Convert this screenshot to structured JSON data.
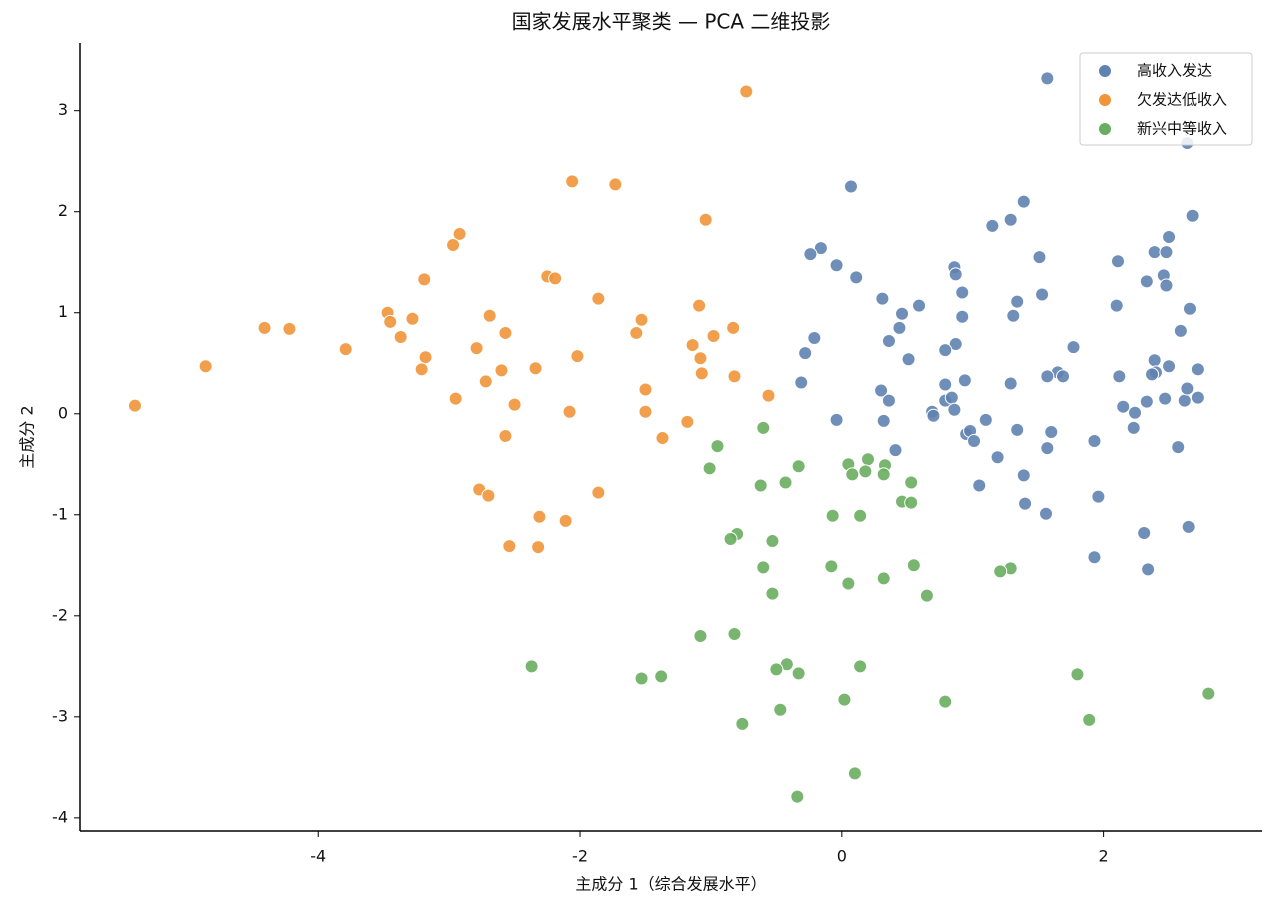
{
  "chart_data": {
    "type": "scatter",
    "title": "国家发展水平聚类 — PCA 二维投影",
    "xlabel": "主成分 1（综合发展水平）",
    "ylabel": "主成分 2",
    "xlim": [
      -5.82,
      3.21
    ],
    "ylim": [
      -4.13,
      3.67
    ],
    "xticks": [
      -4,
      -2,
      0,
      2
    ],
    "yticks": [
      -4,
      -3,
      -2,
      -1,
      0,
      1,
      2,
      3
    ],
    "grid": false,
    "legend": "upper right",
    "series": [
      {
        "name": "高收入发达",
        "color": "#5f82b0",
        "x": [
          1.57,
          2.64,
          2.68,
          0.07,
          1.39,
          1.15,
          1.29,
          -0.16,
          -0.24,
          -0.04,
          0.11,
          0.86,
          0.87,
          1.51,
          1.53,
          2.11,
          2.5,
          2.39,
          2.48,
          2.33,
          2.46,
          2.48,
          2.1,
          2.66,
          2.59,
          0.92,
          0.31,
          0.59,
          0.46,
          0.92,
          1.34,
          1.31,
          0.44,
          -0.21,
          -0.28,
          0.36,
          0.51,
          0.87,
          0.79,
          1.77,
          1.65,
          1.69,
          1.57,
          2.39,
          2.5,
          2.72,
          2.12,
          2.4,
          2.37,
          -0.31,
          0.3,
          0.36,
          0.94,
          1.29,
          0.79,
          0.79,
          0.84,
          0.86,
          0.69,
          0.7,
          -0.04,
          0.32,
          1.1,
          2.15,
          2.24,
          2.33,
          2.47,
          2.62,
          2.64,
          2.72,
          2.23,
          0.95,
          0.98,
          1.01,
          1.34,
          1.6,
          1.93,
          1.57,
          2.57,
          0.41,
          1.19,
          1.39,
          1.05,
          1.4,
          1.56,
          1.96,
          2.65,
          2.31,
          1.93,
          2.34
        ],
        "values": [
          3.32,
          2.68,
          1.96,
          2.25,
          2.1,
          1.86,
          1.92,
          1.64,
          1.58,
          1.47,
          1.35,
          1.45,
          1.38,
          1.55,
          1.18,
          1.51,
          1.75,
          1.6,
          1.6,
          1.31,
          1.37,
          1.27,
          1.07,
          1.04,
          0.82,
          1.2,
          1.14,
          1.07,
          0.99,
          0.96,
          1.11,
          0.97,
          0.85,
          0.75,
          0.6,
          0.72,
          0.54,
          0.69,
          0.63,
          0.66,
          0.41,
          0.37,
          0.37,
          0.53,
          0.47,
          0.44,
          0.37,
          0.41,
          0.39,
          0.31,
          0.23,
          0.13,
          0.33,
          0.3,
          0.29,
          0.13,
          0.16,
          0.04,
          0.02,
          -0.02,
          -0.06,
          -0.07,
          -0.06,
          0.07,
          0.01,
          0.12,
          0.15,
          0.13,
          0.25,
          0.16,
          -0.14,
          -0.2,
          -0.17,
          -0.27,
          -0.16,
          -0.18,
          -0.27,
          -0.34,
          -0.33,
          -0.36,
          -0.43,
          -0.61,
          -0.71,
          -0.89,
          -0.99,
          -0.82,
          -1.12,
          -1.18,
          -1.42,
          -1.54
        ]
      },
      {
        "name": "欠发达低收入",
        "color": "#f0953a",
        "x": [
          -0.73,
          -2.06,
          -1.73,
          -1.04,
          -2.92,
          -2.97,
          -2.25,
          -2.19,
          -3.19,
          -1.86,
          -1.09,
          -3.47,
          -3.28,
          -2.69,
          -3.45,
          -1.53,
          -4.41,
          -4.22,
          -3.37,
          -2.57,
          -0.98,
          -0.83,
          -1.57,
          -3.79,
          -2.79,
          -1.14,
          -3.18,
          -2.02,
          -1.08,
          -4.86,
          -3.21,
          -2.6,
          -2.34,
          -1.07,
          -0.82,
          -2.72,
          -1.5,
          -0.56,
          -2.95,
          -2.5,
          -5.4,
          -2.08,
          -1.5,
          -1.18,
          -1.37,
          -2.57,
          -2.77,
          -2.7,
          -1.86,
          -2.31,
          -2.11,
          -2.54,
          -2.32
        ],
        "values": [
          3.19,
          2.3,
          2.27,
          1.92,
          1.78,
          1.67,
          1.36,
          1.34,
          1.33,
          1.14,
          1.07,
          1.0,
          0.94,
          0.97,
          0.91,
          0.93,
          0.85,
          0.84,
          0.76,
          0.8,
          0.77,
          0.85,
          0.8,
          0.64,
          0.65,
          0.68,
          0.56,
          0.57,
          0.55,
          0.47,
          0.44,
          0.43,
          0.45,
          0.4,
          0.37,
          0.32,
          0.24,
          0.18,
          0.15,
          0.09,
          0.08,
          0.02,
          0.02,
          -0.08,
          -0.24,
          -0.22,
          -0.75,
          -0.81,
          -0.78,
          -1.02,
          -1.06,
          -1.31,
          -1.32
        ]
      },
      {
        "name": "新兴中等收入",
        "color": "#69ad5f",
        "x": [
          -0.6,
          -0.95,
          0.2,
          0.05,
          -0.33,
          0.33,
          -1.01,
          0.18,
          0.08,
          0.32,
          0.53,
          -0.43,
          -0.62,
          0.46,
          0.53,
          -0.07,
          0.14,
          -0.8,
          -0.85,
          -0.53,
          -0.6,
          -0.08,
          0.55,
          1.29,
          1.21,
          0.05,
          0.32,
          -0.53,
          0.65,
          -1.08,
          -0.82,
          -2.37,
          -0.42,
          -0.5,
          0.14,
          -0.33,
          -1.53,
          -1.38,
          1.8,
          2.8,
          0.02,
          0.79,
          -0.47,
          1.89,
          -0.76,
          0.1,
          -0.34
        ],
        "values": [
          -0.14,
          -0.32,
          -0.45,
          -0.5,
          -0.52,
          -0.51,
          -0.54,
          -0.57,
          -0.6,
          -0.6,
          -0.68,
          -0.68,
          -0.71,
          -0.87,
          -0.88,
          -1.01,
          -1.01,
          -1.19,
          -1.24,
          -1.26,
          -1.52,
          -1.51,
          -1.5,
          -1.53,
          -1.56,
          -1.68,
          -1.63,
          -1.78,
          -1.8,
          -2.2,
          -2.18,
          -2.5,
          -2.48,
          -2.53,
          -2.5,
          -2.57,
          -2.62,
          -2.6,
          -2.58,
          -2.77,
          -2.83,
          -2.85,
          -2.93,
          -3.03,
          -3.07,
          -3.56,
          -3.79
        ]
      }
    ]
  }
}
